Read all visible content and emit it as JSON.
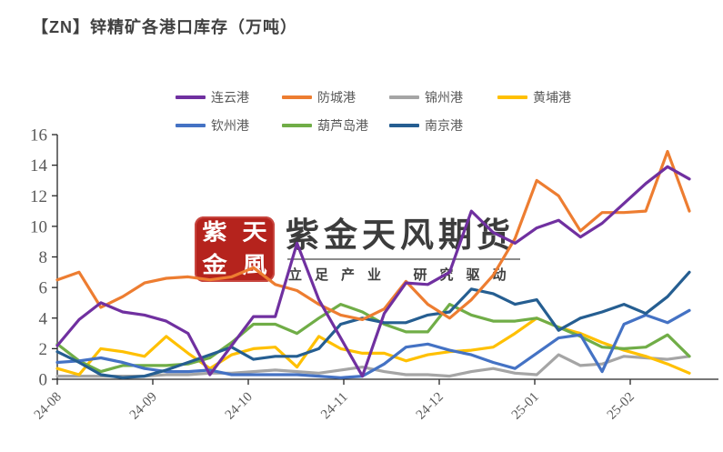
{
  "title": "【ZN】锌精矿各港口库存（万吨）",
  "watermark": {
    "seal_chars": [
      "紫",
      "天",
      "金",
      "風"
    ],
    "brand": "紫金天风期货",
    "slogan": "立足产业 研究驱动",
    "seal_color": "#b5231d"
  },
  "chart_data": {
    "type": "line",
    "title": "【ZN】锌精矿各港口库存（万吨）",
    "xlabel": "",
    "ylabel": "",
    "x_tick_labels": [
      "24-08",
      "24-09",
      "24-10",
      "24-11",
      "24-12",
      "25-01",
      "25-02"
    ],
    "y_ticks": [
      0,
      2,
      4,
      6,
      8,
      10,
      12,
      14,
      16
    ],
    "ylim": [
      0,
      16
    ],
    "grid": false,
    "legend_position": "top",
    "x_unit": "week",
    "series": [
      {
        "name": "连云港",
        "color": "#7030A0",
        "values": [
          2.2,
          3.9,
          5.0,
          4.4,
          4.2,
          3.8,
          3.0,
          0.3,
          2.2,
          4.1,
          4.1,
          8.9,
          5.2,
          2.7,
          0.2,
          4.3,
          6.3,
          6.2,
          7.0,
          11.0,
          9.6,
          8.9,
          9.9,
          10.4,
          9.3,
          10.2,
          11.5,
          12.8,
          13.9,
          13.1
        ]
      },
      {
        "name": "防城港",
        "color": "#ED7D31",
        "values": [
          6.5,
          7.0,
          4.7,
          5.4,
          6.3,
          6.6,
          6.7,
          6.5,
          6.7,
          7.3,
          6.2,
          5.8,
          4.9,
          4.2,
          3.9,
          4.6,
          6.4,
          4.9,
          4.0,
          5.2,
          6.8,
          9.2,
          13.0,
          12.0,
          9.7,
          10.9,
          10.9,
          11.0,
          14.9,
          11.0
        ]
      },
      {
        "name": "锦州港",
        "color": "#A5A5A5",
        "values": [
          0.2,
          0.2,
          0.2,
          0.2,
          0.2,
          0.3,
          0.3,
          0.4,
          0.4,
          0.5,
          0.6,
          0.5,
          0.4,
          0.6,
          0.8,
          0.5,
          0.3,
          0.3,
          0.2,
          0.5,
          0.7,
          0.4,
          0.3,
          1.6,
          0.9,
          1.0,
          1.5,
          1.4,
          1.3,
          1.5
        ]
      },
      {
        "name": "黄埔港",
        "color": "#FFC000",
        "values": [
          0.7,
          0.3,
          2.0,
          1.8,
          1.5,
          2.8,
          1.7,
          0.7,
          1.6,
          2.0,
          2.1,
          0.8,
          2.8,
          2.0,
          1.7,
          1.7,
          1.2,
          1.6,
          1.8,
          1.9,
          2.1,
          3.0,
          4.0,
          3.4,
          3.0,
          2.4,
          1.9,
          1.5,
          1.0,
          0.4
        ]
      },
      {
        "name": "钦州港",
        "color": "#4472C4",
        "values": [
          1.1,
          1.2,
          1.4,
          1.1,
          0.7,
          0.5,
          0.5,
          0.6,
          0.3,
          0.3,
          0.3,
          0.3,
          0.2,
          0.1,
          0.2,
          1.0,
          2.1,
          2.3,
          1.9,
          1.6,
          1.1,
          0.7,
          1.7,
          2.7,
          2.9,
          0.5,
          3.6,
          4.2,
          3.7,
          4.5
        ]
      },
      {
        "name": "葫芦岛港",
        "color": "#70AD47",
        "values": [
          2.3,
          1.2,
          0.5,
          0.9,
          0.9,
          0.9,
          1.0,
          1.4,
          2.4,
          3.6,
          3.6,
          3.0,
          4.0,
          4.9,
          4.4,
          3.6,
          3.1,
          3.1,
          4.9,
          4.2,
          3.8,
          3.8,
          4.0,
          3.4,
          2.8,
          2.1,
          2.0,
          2.1,
          2.9,
          1.5
        ]
      },
      {
        "name": "南京港",
        "color": "#255E91",
        "values": [
          1.8,
          1.1,
          0.3,
          0.1,
          0.2,
          0.6,
          1.1,
          1.6,
          2.1,
          1.3,
          1.5,
          1.5,
          2.0,
          3.6,
          4.0,
          3.7,
          3.7,
          4.2,
          4.4,
          5.9,
          5.6,
          4.9,
          5.2,
          3.2,
          4.0,
          4.4,
          4.9,
          4.3,
          5.4,
          7.0
        ]
      }
    ]
  }
}
